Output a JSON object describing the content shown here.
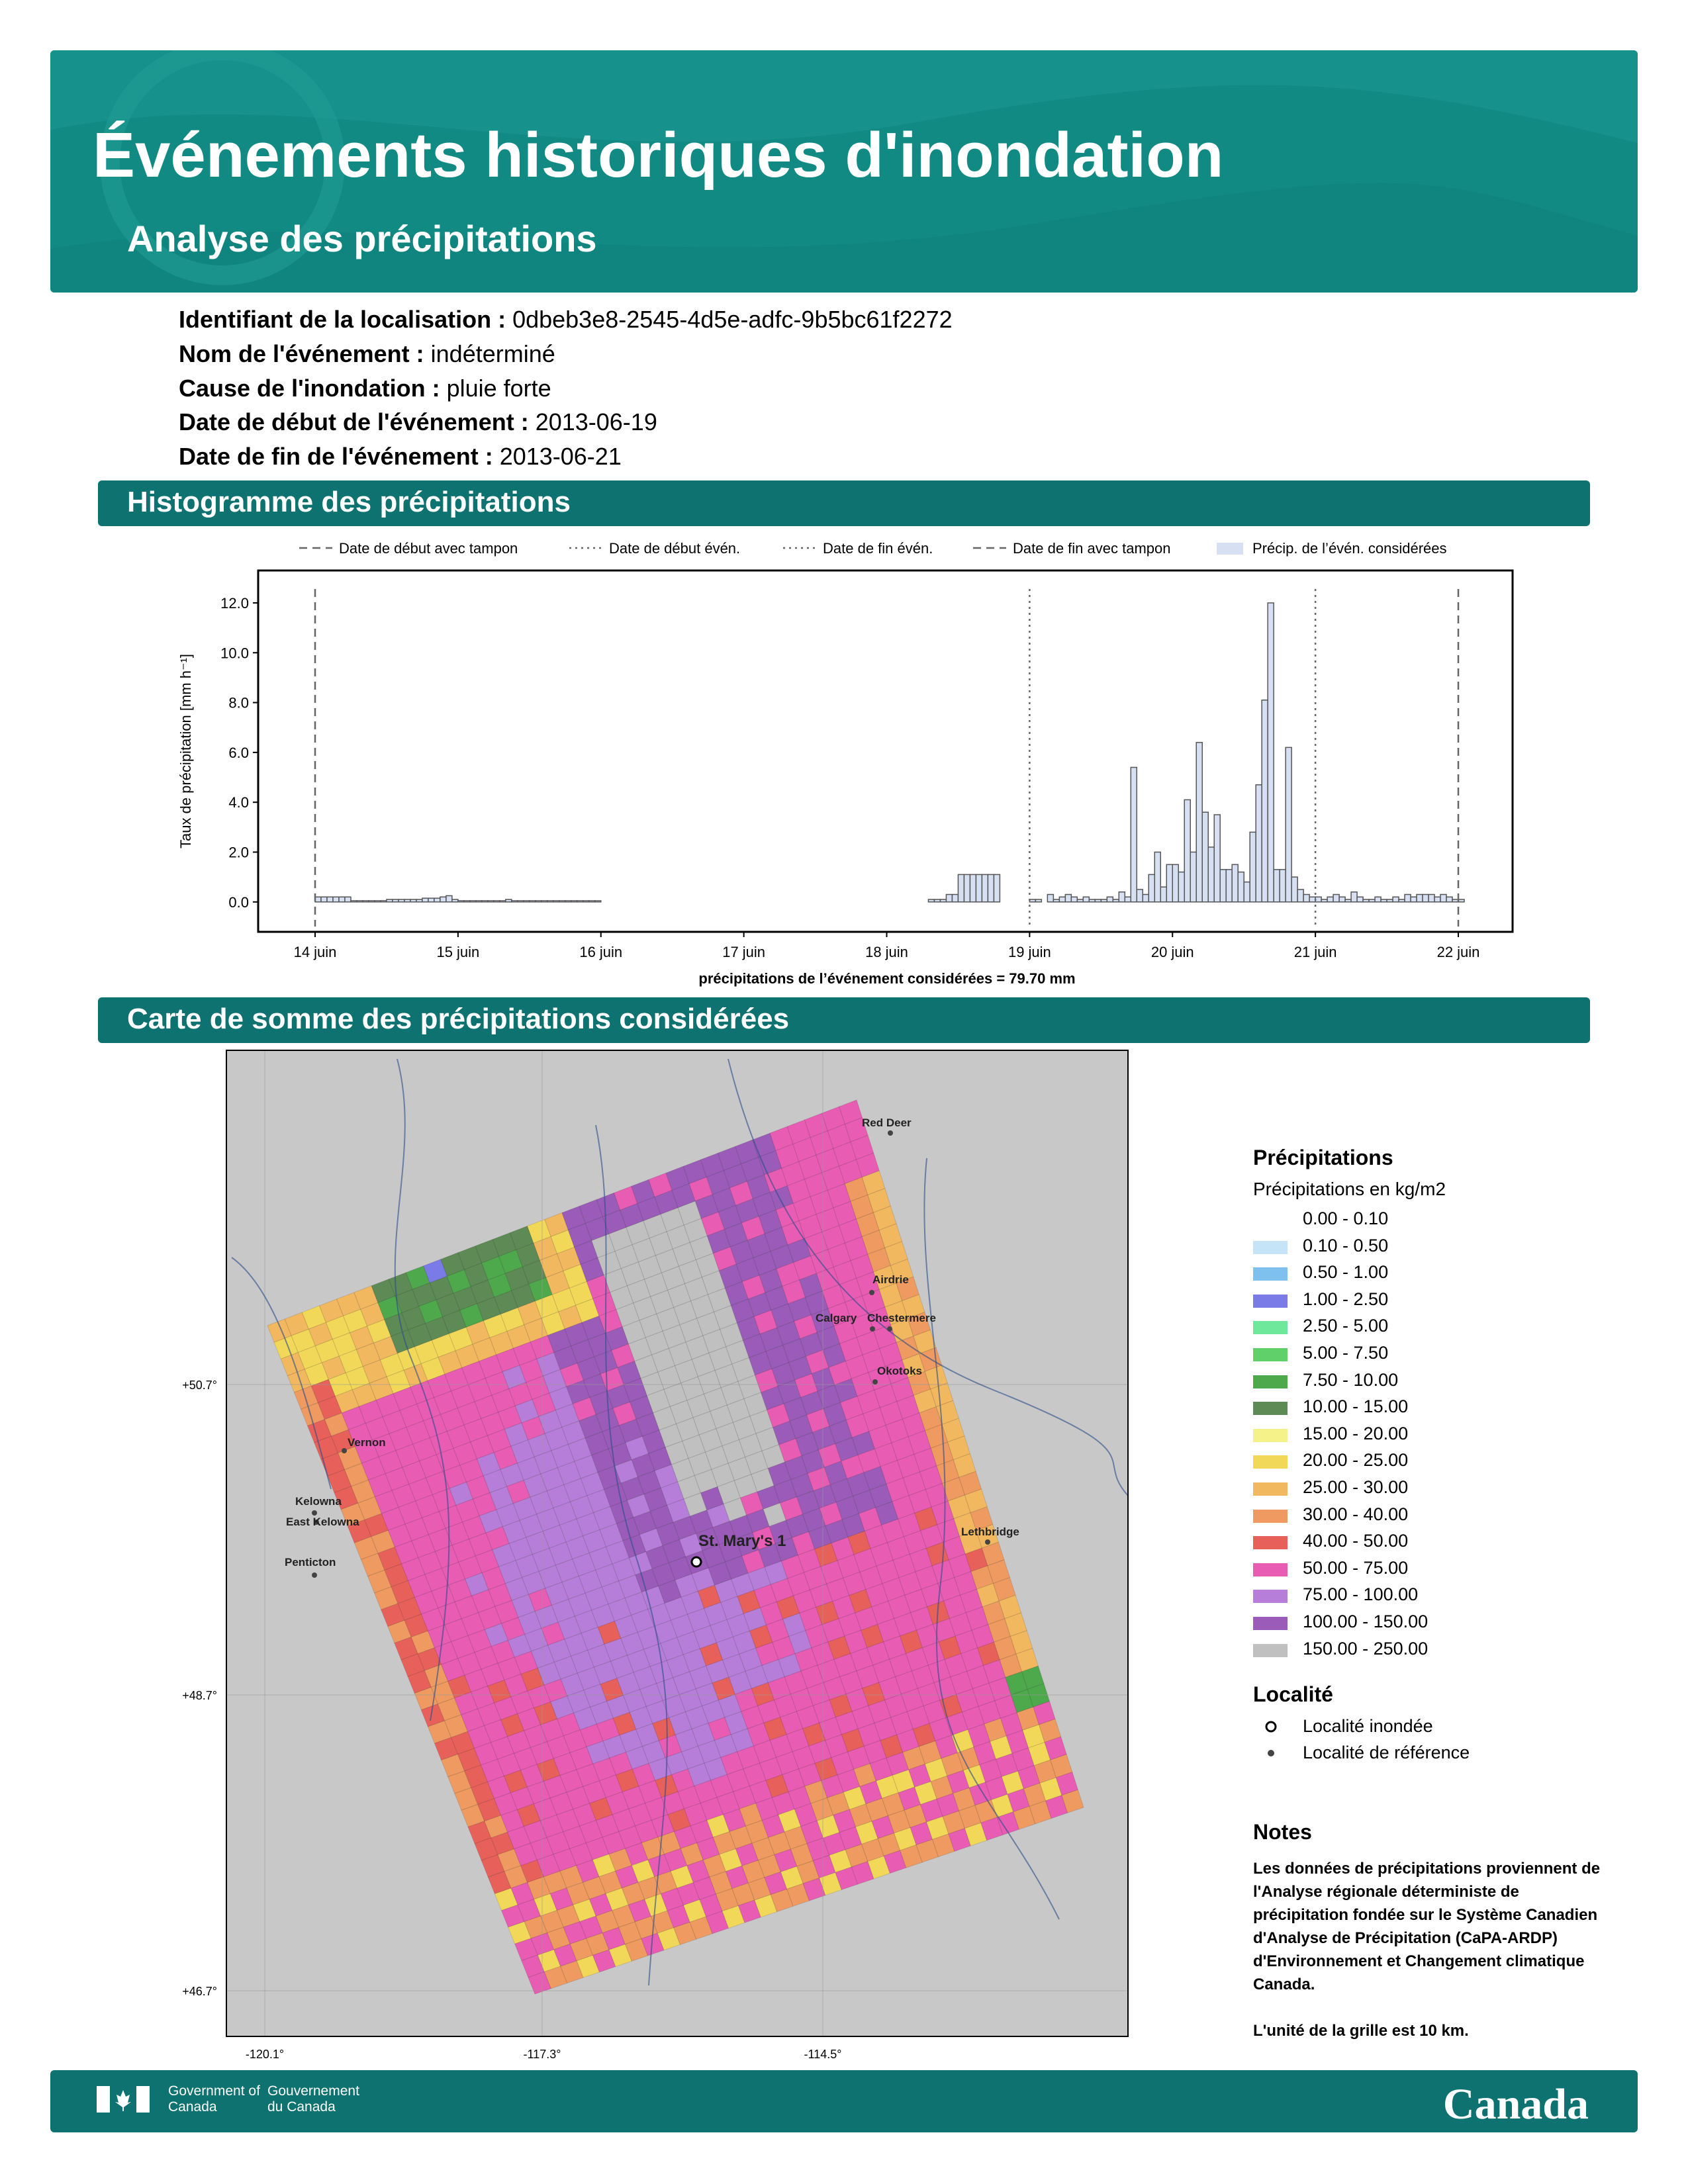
{
  "header": {
    "title": "Événements historiques d'inondation",
    "subtitle": "Analyse des précipitations"
  },
  "fields": [
    {
      "label": "Identifiant de la localisation :",
      "value": "0dbeb3e8-2545-4d5e-adfc-9b5bc61f2272"
    },
    {
      "label": "Nom de l'événement :",
      "value": "indéterminé"
    },
    {
      "label": "Cause de l'inondation :",
      "value": "pluie forte"
    },
    {
      "label": "Date de début de l'événement :",
      "value": "2013-06-19"
    },
    {
      "label": "Date de fin de l'événement :",
      "value": "2013-06-21"
    }
  ],
  "histogram": {
    "section_title": "Histogramme des précipitations",
    "type": "bar",
    "y_label": "Taux de précipitation [mm h⁻¹]",
    "x_label": "précipitations de l’événement considérées = 79.70 mm",
    "color": "#d6e0f2",
    "edge_color": "#555555",
    "ylim": [
      -1.2,
      13.3
    ],
    "yticks": [
      {
        "value": 0,
        "label": "0.0"
      },
      {
        "value": 2,
        "label": "2.0"
      },
      {
        "value": 4,
        "label": "4.0"
      },
      {
        "value": 6,
        "label": "6.0"
      },
      {
        "value": 8,
        "label": "8.0"
      },
      {
        "value": 10,
        "label": "10.0"
      },
      {
        "value": 12,
        "label": "12.0"
      }
    ],
    "markers": [
      {
        "name": "Date de début avec tampon",
        "style": "dashed",
        "at": "14 juin"
      },
      {
        "name": "Date de début évén.",
        "style": "dotted",
        "at": "19 juin"
      },
      {
        "name": "Date de fin évén.",
        "style": "dotted",
        "at": "21 juin"
      },
      {
        "name": "Date de fin avec tampon",
        "style": "dashed",
        "at": "22 juin"
      }
    ],
    "series_name": "Précip. de l’évén. considérées",
    "categories": [
      "14 juin",
      null,
      null,
      null,
      null,
      null,
      null,
      null,
      null,
      null,
      null,
      null,
      null,
      null,
      null,
      null,
      null,
      null,
      null,
      null,
      null,
      null,
      null,
      null,
      "15 juin",
      null,
      null,
      null,
      null,
      null,
      null,
      null,
      null,
      null,
      null,
      null,
      null,
      null,
      null,
      null,
      null,
      null,
      null,
      null,
      null,
      null,
      null,
      null,
      "16 juin",
      null,
      null,
      null,
      null,
      null,
      null,
      null,
      null,
      null,
      null,
      null,
      null,
      null,
      null,
      null,
      null,
      null,
      null,
      null,
      null,
      null,
      null,
      null,
      "17 juin",
      null,
      null,
      null,
      null,
      null,
      null,
      null,
      null,
      null,
      null,
      null,
      null,
      null,
      null,
      null,
      null,
      null,
      null,
      null,
      null,
      null,
      null,
      null,
      "18 juin",
      null,
      null,
      null,
      null,
      null,
      null,
      null,
      null,
      null,
      null,
      null,
      null,
      null,
      null,
      null,
      null,
      null,
      null,
      null,
      null,
      null,
      null,
      null,
      "19 juin",
      null,
      null,
      null,
      null,
      null,
      null,
      null,
      null,
      null,
      null,
      null,
      null,
      null,
      null,
      null,
      null,
      null,
      null,
      null,
      null,
      null,
      null,
      null,
      "20 juin",
      null,
      null,
      null,
      null,
      null,
      null,
      null,
      null,
      null,
      null,
      null,
      null,
      null,
      null,
      null,
      null,
      null,
      null,
      null,
      null,
      null,
      null,
      null,
      "21 juin",
      null,
      null,
      null,
      null,
      null,
      null,
      null,
      null,
      null,
      null,
      null,
      null,
      null,
      null,
      null,
      null,
      null,
      null,
      null,
      null,
      null,
      null,
      null,
      "22 juin"
    ],
    "values": [
      0.2,
      0.2,
      0.2,
      0.2,
      0.2,
      0.2,
      0.05,
      0.05,
      0.05,
      0.05,
      0.05,
      0.05,
      0.1,
      0.1,
      0.1,
      0.1,
      0.1,
      0.1,
      0.15,
      0.15,
      0.15,
      0.2,
      0.25,
      0.1,
      0.05,
      0.05,
      0.05,
      0.05,
      0.05,
      0.05,
      0.05,
      0.05,
      0.1,
      0.05,
      0.05,
      0.05,
      0.05,
      0.05,
      0.05,
      0.05,
      0.05,
      0.05,
      0.05,
      0.05,
      0.05,
      0.05,
      0.05,
      0.05,
      0,
      0,
      0,
      0,
      0,
      0,
      0,
      0,
      0,
      0,
      0,
      0,
      0,
      0,
      0,
      0,
      0,
      0,
      0,
      0,
      0,
      0,
      0,
      0,
      0,
      0,
      0,
      0,
      0,
      0,
      0,
      0,
      0,
      0,
      0,
      0,
      0,
      0,
      0,
      0,
      0,
      0,
      0,
      0,
      0,
      0,
      0,
      0,
      0,
      0,
      0,
      0,
      0,
      0,
      0,
      0.1,
      0.1,
      0.1,
      0.3,
      0.3,
      1.1,
      1.1,
      1.1,
      1.1,
      1.1,
      1.1,
      1.1,
      0,
      0,
      0,
      0,
      0,
      0.1,
      0.1,
      0,
      0.3,
      0.1,
      0.2,
      0.3,
      0.2,
      0.1,
      0.2,
      0.1,
      0.1,
      0.1,
      0.2,
      0.1,
      0.4,
      0.2,
      5.4,
      0.5,
      0.3,
      1.1,
      2.0,
      0.6,
      1.5,
      1.5,
      1.2,
      4.1,
      2.0,
      6.4,
      3.6,
      2.2,
      3.5,
      1.3,
      1.3,
      1.5,
      1.2,
      0.8,
      2.8,
      4.7,
      8.1,
      12.0,
      1.3,
      1.3,
      6.2,
      1.0,
      0.5,
      0.3,
      0.2,
      0.2,
      0.1,
      0.2,
      0.3,
      0.2,
      0.1,
      0.4,
      0.2,
      0.1,
      0.1,
      0.2,
      0.1,
      0.1,
      0.2,
      0.1,
      0.3,
      0.2,
      0.3,
      0.3,
      0.3,
      0.2,
      0.3,
      0.2,
      0.1,
      0.1
    ]
  },
  "map": {
    "section_title": "Carte de somme des précipitations considérées",
    "lat_labels": [
      "+50.7°",
      "+48.7°",
      "+46.7°"
    ],
    "lon_labels": [
      "-120.1°",
      "-117.3°",
      "-114.5°"
    ],
    "places": [
      "Red Deer",
      "Airdrie",
      "Calgary",
      "Chestermere",
      "Okotoks",
      "Vernon",
      "Kelowna",
      "East Kelowna",
      "Penticton",
      "Lethbridge",
      "St. Mary's 1"
    ],
    "legend": {
      "title": "Précipitations",
      "subtitle": "Précipitations en kg/m2",
      "entries": [
        {
          "label": "0.00 - 0.10",
          "color": "#ffffff"
        },
        {
          "label": "0.10 - 0.50",
          "color": "#c6e4f7"
        },
        {
          "label": "0.50 - 1.00",
          "color": "#7ec0ee"
        },
        {
          "label": "1.00 - 2.50",
          "color": "#7b7be8"
        },
        {
          "label": "2.50 - 5.00",
          "color": "#6ee89a"
        },
        {
          "label": "5.00 - 7.50",
          "color": "#5fd06a"
        },
        {
          "label": "7.50 - 10.00",
          "color": "#4ea84c"
        },
        {
          "label": "10.00 - 15.00",
          "color": "#5d8a55"
        },
        {
          "label": "15.00 - 20.00",
          "color": "#f6f28a"
        },
        {
          "label": "20.00 - 25.00",
          "color": "#f2d858"
        },
        {
          "label": "25.00 - 30.00",
          "color": "#f2b860"
        },
        {
          "label": "30.00 - 40.00",
          "color": "#ee9a60"
        },
        {
          "label": "40.00 - 50.00",
          "color": "#e8605a"
        },
        {
          "label": "50.00 - 75.00",
          "color": "#e85cb4"
        },
        {
          "label": "75.00 - 100.00",
          "color": "#b67ed8"
        },
        {
          "label": "100.00 - 150.00",
          "color": "#9a5cb8"
        },
        {
          "label": "150.00 - 250.00",
          "color": "#c0c0c0"
        }
      ]
    },
    "locality": {
      "title": "Localité",
      "entries": [
        "Localité inondée",
        "Localité de référence"
      ]
    },
    "notes": {
      "title": "Notes",
      "paragraphs": [
        "Les données de précipitations proviennent de l'Analyse régionale déterministe de précipitation fondée sur le Système Canadien d'Analyse de Précipitation (CaPA-ARDP) d'Environnement et Changement climatique Canada.",
        "L'unité de la grille est 10 km."
      ]
    }
  },
  "footer": {
    "government_en": "Government of Canada",
    "government_fr": "Gouvernement du Canada",
    "wordmark": "Canada"
  }
}
